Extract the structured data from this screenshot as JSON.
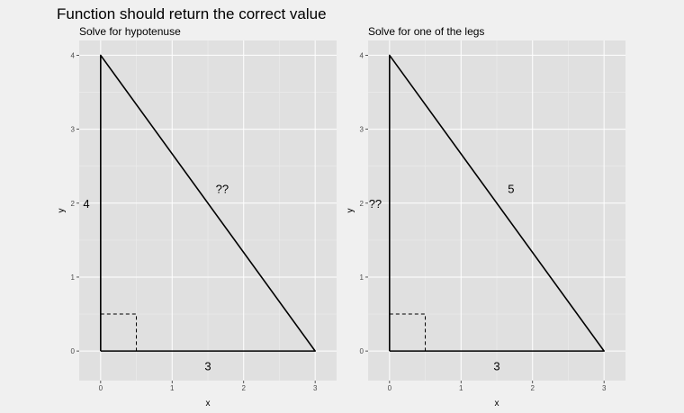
{
  "page_title": "Function should return the correct value",
  "chart_data": [
    {
      "type": "line",
      "subtitle": "Solve for hypotenuse",
      "xlabel": "x",
      "ylabel": "y",
      "xlim": [
        -0.3,
        3.3
      ],
      "ylim": [
        -0.4,
        4.2
      ],
      "x_ticks": [
        0,
        1,
        2,
        3
      ],
      "y_ticks": [
        0,
        1,
        2,
        3,
        4
      ],
      "grid": true,
      "triangle": [
        [
          0,
          0
        ],
        [
          3,
          0
        ],
        [
          0,
          4
        ]
      ],
      "right_angle_marker": [
        [
          0,
          0.5
        ],
        [
          0.5,
          0.5
        ],
        [
          0.5,
          0
        ]
      ],
      "labels": [
        {
          "text": "3",
          "x": 1.5,
          "y": -0.2
        },
        {
          "text": "4",
          "x": -0.2,
          "y": 2
        },
        {
          "text": "??",
          "x": 1.7,
          "y": 2.2
        }
      ]
    },
    {
      "type": "line",
      "subtitle": "Solve for one of the legs",
      "xlabel": "x",
      "ylabel": "y",
      "xlim": [
        -0.3,
        3.3
      ],
      "ylim": [
        -0.4,
        4.2
      ],
      "x_ticks": [
        0,
        1,
        2,
        3
      ],
      "y_ticks": [
        0,
        1,
        2,
        3,
        4
      ],
      "grid": true,
      "triangle": [
        [
          0,
          0
        ],
        [
          3,
          0
        ],
        [
          0,
          4
        ]
      ],
      "right_angle_marker": [
        [
          0,
          0.5
        ],
        [
          0.5,
          0.5
        ],
        [
          0.5,
          0
        ]
      ],
      "labels": [
        {
          "text": "3",
          "x": 1.5,
          "y": -0.2
        },
        {
          "text": "??",
          "x": -0.2,
          "y": 2
        },
        {
          "text": "5",
          "x": 1.7,
          "y": 2.2
        }
      ]
    }
  ],
  "colors": {
    "panel_bg": "#e0e0e0",
    "grid_major": "#ffffff",
    "grid_minor": "#ececec",
    "line": "#000000",
    "figure_bg": "#f0f0f0"
  }
}
